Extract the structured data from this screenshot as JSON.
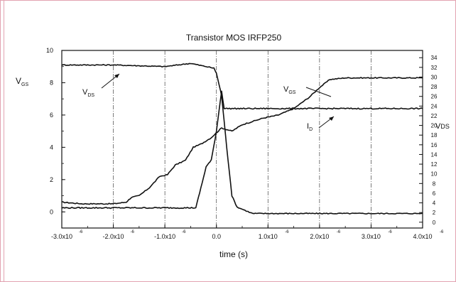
{
  "chart_data": {
    "type": "line",
    "title": "Transistor MOS IRFP250",
    "xlabel": "time (s)",
    "ylabel_left": "V_GS",
    "ylabel_right": "V_DS",
    "xlim": [
      -3e-06,
      4e-06
    ],
    "ylim_left": [
      -1,
      10
    ],
    "ylim_right": [
      -1.2,
      35.5
    ],
    "x_ticks": [
      {
        "base": "-3.0x10",
        "exp": "-6"
      },
      {
        "base": "-2.0x10",
        "exp": "-6"
      },
      {
        "base": "-1.0x10",
        "exp": "-6"
      },
      {
        "base": "0.0",
        "exp": ""
      },
      {
        "base": "1.0x10",
        "exp": "-6"
      },
      {
        "base": "2.0x10",
        "exp": "-6"
      },
      {
        "base": "3.0x10",
        "exp": "-6"
      },
      {
        "base": "4.0x10",
        "exp": "-6"
      }
    ],
    "x_tick_values": [
      -3e-06,
      -2e-06,
      -1e-06,
      0,
      1e-06,
      2e-06,
      3e-06,
      4e-06
    ],
    "left_ticks": [
      0,
      2,
      4,
      6,
      8,
      10
    ],
    "right_ticks": [
      0,
      2,
      4,
      6,
      8,
      10,
      12,
      14,
      16,
      18,
      20,
      22,
      24,
      26,
      28,
      30,
      32,
      34
    ],
    "grid": "vertical dash-dot lines at x ticks",
    "annotations": [
      {
        "text": "V",
        "sub": "DS"
      },
      {
        "text": "V",
        "sub": "GS"
      },
      {
        "text": "I",
        "sub": "D"
      }
    ],
    "series": [
      {
        "name": "V_GS",
        "axis": "left",
        "x": [
          -3e-06,
          -2.6e-06,
          -2e-06,
          -1.75e-06,
          -1.65e-06,
          -1.5e-06,
          -1.3e-06,
          -1.1e-06,
          -9.5e-07,
          -8e-07,
          -6e-07,
          -4.5e-07,
          -3e-07,
          -1e-07,
          1e-07,
          3e-07,
          5e-07,
          7e-07,
          9e-07,
          1.2e-06,
          1.5e-06,
          1.8e-06,
          2e-06,
          2.2e-06,
          2.5e-06,
          3e-06,
          3.5e-06,
          4e-06
        ],
        "y": [
          0.6,
          0.5,
          0.5,
          0.6,
          0.9,
          1.0,
          1.5,
          2.2,
          2.3,
          2.9,
          3.2,
          4.0,
          4.2,
          4.6,
          5.2,
          5.0,
          5.4,
          5.6,
          5.8,
          6.0,
          6.4,
          7.1,
          7.7,
          8.2,
          8.3,
          8.3,
          8.3,
          8.3
        ]
      },
      {
        "name": "V_DS",
        "axis": "left",
        "x": [
          -3e-06,
          -2e-06,
          -1e-06,
          -5e-07,
          -2e-07,
          -5e-08,
          0.0,
          1e-07,
          2e-07,
          3e-07,
          4e-07,
          5.5e-07,
          7e-07,
          1e-06,
          2e-06,
          3e-06,
          4e-06
        ],
        "y": [
          9.1,
          9.1,
          9.0,
          9.2,
          9.0,
          8.9,
          8.6,
          7.2,
          4.0,
          1.0,
          0.3,
          0.1,
          -0.1,
          -0.1,
          -0.1,
          -0.1,
          -0.1
        ]
      },
      {
        "name": "I_D",
        "axis": "left",
        "x": [
          -3e-06,
          -2e-06,
          -1e-06,
          -4e-07,
          -3e-07,
          -2e-07,
          -1e-07,
          0.0,
          1e-07,
          1.5e-07,
          2.5e-07,
          1e-06,
          2e-06,
          3e-06,
          4e-06
        ],
        "y": [
          0.25,
          0.25,
          0.25,
          0.25,
          1.5,
          2.8,
          3.2,
          5.0,
          7.5,
          6.4,
          6.4,
          6.4,
          6.4,
          6.4,
          6.4
        ]
      }
    ]
  }
}
